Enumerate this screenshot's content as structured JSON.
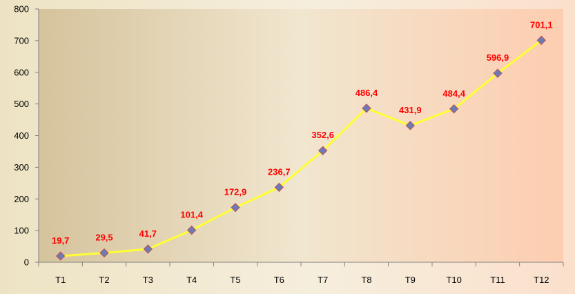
{
  "chart_data": {
    "type": "line",
    "title": "",
    "xlabel": "",
    "ylabel": "",
    "categories": [
      "T1",
      "T2",
      "T3",
      "T4",
      "T5",
      "T6",
      "T7",
      "T8",
      "T9",
      "T10",
      "T11",
      "T12"
    ],
    "series": [
      {
        "values": [
          19.7,
          29.5,
          41.7,
          101.4,
          172.9,
          236.7,
          352.6,
          486.4,
          431.9,
          484.4,
          596.9,
          701.1
        ]
      }
    ],
    "data_labels": [
      "19,7",
      "29,5",
      "41,7",
      "101,4",
      "172,9",
      "236,7",
      "352,6",
      "486,4",
      "431,9",
      "484,4",
      "596,9",
      "701,1"
    ],
    "ylim": [
      0,
      800
    ],
    "yticks": [
      0,
      100,
      200,
      300,
      400,
      500,
      600,
      700,
      800
    ],
    "ytick_labels": [
      "0",
      "100",
      "200",
      "300",
      "400",
      "500",
      "600",
      "700",
      "800"
    ],
    "grid": false,
    "legend": "none",
    "colors": {
      "line": "#ffff33",
      "marker_fill": "#6b7bb8",
      "marker_stroke": "#c0504d",
      "data_label": "#ff0000",
      "axis": "#808080",
      "plot_bg_left": "#d5c39c",
      "plot_bg_mid": "#f1e6cf",
      "plot_bg_right": "#fdcdb0"
    }
  }
}
